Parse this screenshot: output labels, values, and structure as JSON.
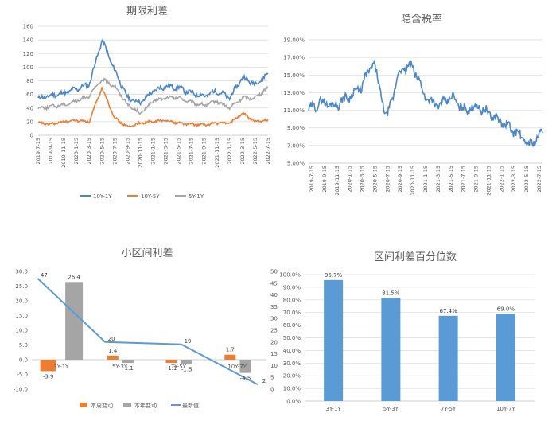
{
  "charts": [
    {
      "id": "term_spread",
      "chart_data": {
        "type": "line",
        "title": "期限利差",
        "x": [
          "2019-7-15",
          "2019-9-15",
          "2019-11-15",
          "2020-1-15",
          "2020-3-15",
          "2020-5-15",
          "2020-7-15",
          "2020-9-15",
          "2020-11-15",
          "2021-1-15",
          "2021-3-15",
          "2021-5-15",
          "2021-7-15",
          "2021-9-15",
          "2021-11-15",
          "2022-1-15",
          "2022-3-15",
          "2022-5-15",
          "2022-7-15"
        ],
        "ylim": [
          0,
          160
        ],
        "yticks": [
          "0",
          "20",
          "40",
          "60",
          "80",
          "100",
          "120",
          "140",
          "160"
        ],
        "grid": true,
        "legend_position": "bottom",
        "series": [
          {
            "name": "10Y-1Y",
            "color": "#4a86c8",
            "values": [
              54,
              58,
              62,
              68,
              75,
              140,
              95,
              55,
              48,
              65,
              72,
              70,
              62,
              58,
              65,
              55,
              85,
              75,
              90
            ]
          },
          {
            "name": "10Y-5Y",
            "color": "#ed7d31",
            "values": [
              18,
              16,
              20,
              22,
              20,
              70,
              25,
              12,
              18,
              20,
              22,
              18,
              16,
              15,
              18,
              18,
              32,
              20,
              22
            ]
          },
          {
            "name": "5Y-1Y",
            "color": "#a5a5a5",
            "values": [
              40,
              42,
              45,
              50,
              58,
              82,
              72,
              45,
              32,
              50,
              55,
              55,
              48,
              44,
              50,
              40,
              55,
              55,
              70
            ]
          }
        ]
      }
    },
    {
      "id": "implied_tax",
      "chart_data": {
        "type": "line",
        "title": "隐含税率",
        "x": [
          "2019-7-15",
          "2019-9-15",
          "2019-11-15",
          "2020-1-15",
          "2020-3-15",
          "2020-5-15",
          "2020-7-15",
          "2020-9-15",
          "2020-11-15",
          "2021-1-15",
          "2021-3-15",
          "2021-5-15",
          "2021-7-15",
          "2021-9-15",
          "2021-11-15",
          "2022-1-15",
          "2022-3-15",
          "2022-5-15",
          "2022-7-15"
        ],
        "ylim": [
          5,
          19
        ],
        "yticks": [
          "5.00%",
          "7.00%",
          "9.00%",
          "11.00%",
          "13.00%",
          "15.00%",
          "17.00%",
          "19.00%"
        ],
        "grid": true,
        "series": [
          {
            "name": "隐含税率",
            "color": "#4a86c8",
            "values": [
              11.0,
              12.0,
              11.5,
              12.5,
              13.5,
              16.5,
              10.0,
              15.5,
              16.0,
              12.5,
              11.5,
              12.5,
              11.0,
              11.5,
              10.5,
              9.5,
              8.5,
              7.0,
              8.5
            ]
          }
        ]
      }
    },
    {
      "id": "small_spread",
      "chart_data": {
        "type": "bar",
        "title": "小区间利差",
        "categories": [
          "3Y-1Y",
          "5Y-3Y",
          "7Y-5Y",
          "10Y-7Y"
        ],
        "left_ylim": [
          -10,
          30
        ],
        "left_yticks": [
          "-10.0",
          "-5.0",
          "0.0",
          "5.0",
          "10.0",
          "15.0",
          "20.0",
          "25.0",
          "30.0"
        ],
        "right_ylim": [
          0,
          50
        ],
        "right_yticks": [
          "0",
          "5",
          "10",
          "15",
          "20",
          "25",
          "30",
          "35",
          "40",
          "45",
          "50"
        ],
        "legend_position": "bottom",
        "series": [
          {
            "name": "本周变动",
            "color": "#ed7d31",
            "type": "bar",
            "axis": "left",
            "values": [
              -3.9,
              1.4,
              -1.1,
              1.7
            ],
            "labels": [
              "-3.9",
              "1.4",
              "-1.1",
              "1.7"
            ]
          },
          {
            "name": "本年变动",
            "color": "#a5a5a5",
            "type": "bar",
            "axis": "left",
            "values": [
              26.4,
              -1.1,
              -1.5,
              -4.5
            ],
            "labels": [
              "26.4",
              "-1.1",
              "-1.5",
              "-4.5"
            ]
          },
          {
            "name": "最新值",
            "color": "#5b9bd5",
            "type": "line",
            "axis": "right",
            "values": [
              47,
              20,
              19,
              2
            ],
            "labels": [
              "47",
              "20",
              "19",
              "2"
            ]
          }
        ]
      }
    },
    {
      "id": "percentile",
      "chart_data": {
        "type": "bar",
        "title": "区间利差百分位数",
        "categories": [
          "3Y-1Y",
          "5Y-3Y",
          "7Y-5Y",
          "10Y-7Y"
        ],
        "ylim": [
          0,
          100
        ],
        "yticks": [
          "0.0%",
          "10.0%",
          "20.0%",
          "30.0%",
          "40.0%",
          "50.0%",
          "60.0%",
          "70.0%",
          "80.0%",
          "90.0%",
          "100.0%"
        ],
        "grid": true,
        "series": [
          {
            "name": "百分位数",
            "color": "#5b9bd5",
            "values": [
              95.7,
              81.5,
              67.4,
              69.0
            ],
            "labels": [
              "95.7%",
              "81.5%",
              "67.4%",
              "69.0%"
            ]
          }
        ]
      }
    }
  ]
}
